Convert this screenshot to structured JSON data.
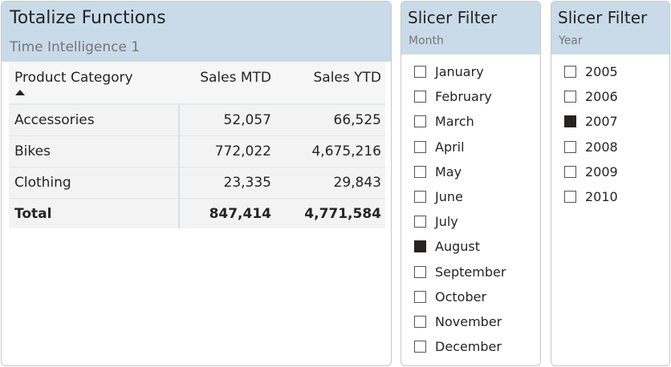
{
  "table": {
    "title": "Totalize Functions",
    "subtitle": "Time Intelligence 1",
    "columns": [
      "Product Category",
      "Sales MTD",
      "Sales YTD"
    ],
    "rows": [
      {
        "category": "Accessories",
        "mtd": "52,057",
        "ytd": "66,525"
      },
      {
        "category": "Bikes",
        "mtd": "772,022",
        "ytd": "4,675,216"
      },
      {
        "category": "Clothing",
        "mtd": "23,335",
        "ytd": "29,843"
      }
    ],
    "total": {
      "label": "Total",
      "mtd": "847,414",
      "ytd": "4,771,584"
    }
  },
  "month_slicer": {
    "title": "Slicer Filter",
    "field": "Month",
    "items": [
      {
        "label": "January",
        "checked": false
      },
      {
        "label": "February",
        "checked": false
      },
      {
        "label": "March",
        "checked": false
      },
      {
        "label": "April",
        "checked": false
      },
      {
        "label": "May",
        "checked": false
      },
      {
        "label": "June",
        "checked": false
      },
      {
        "label": "July",
        "checked": false
      },
      {
        "label": "August",
        "checked": true
      },
      {
        "label": "September",
        "checked": false
      },
      {
        "label": "October",
        "checked": false
      },
      {
        "label": "November",
        "checked": false
      },
      {
        "label": "December",
        "checked": false
      }
    ]
  },
  "year_slicer": {
    "title": "Slicer Filter",
    "field": "Year",
    "items": [
      {
        "label": "2005",
        "checked": false
      },
      {
        "label": "2006",
        "checked": false
      },
      {
        "label": "2007",
        "checked": true
      },
      {
        "label": "2008",
        "checked": false
      },
      {
        "label": "2009",
        "checked": false
      },
      {
        "label": "2010",
        "checked": false
      }
    ]
  },
  "colors": {
    "header_band": "#c9dbe8",
    "row_background": "#f3f3f3",
    "checked_fill": "#252423"
  }
}
